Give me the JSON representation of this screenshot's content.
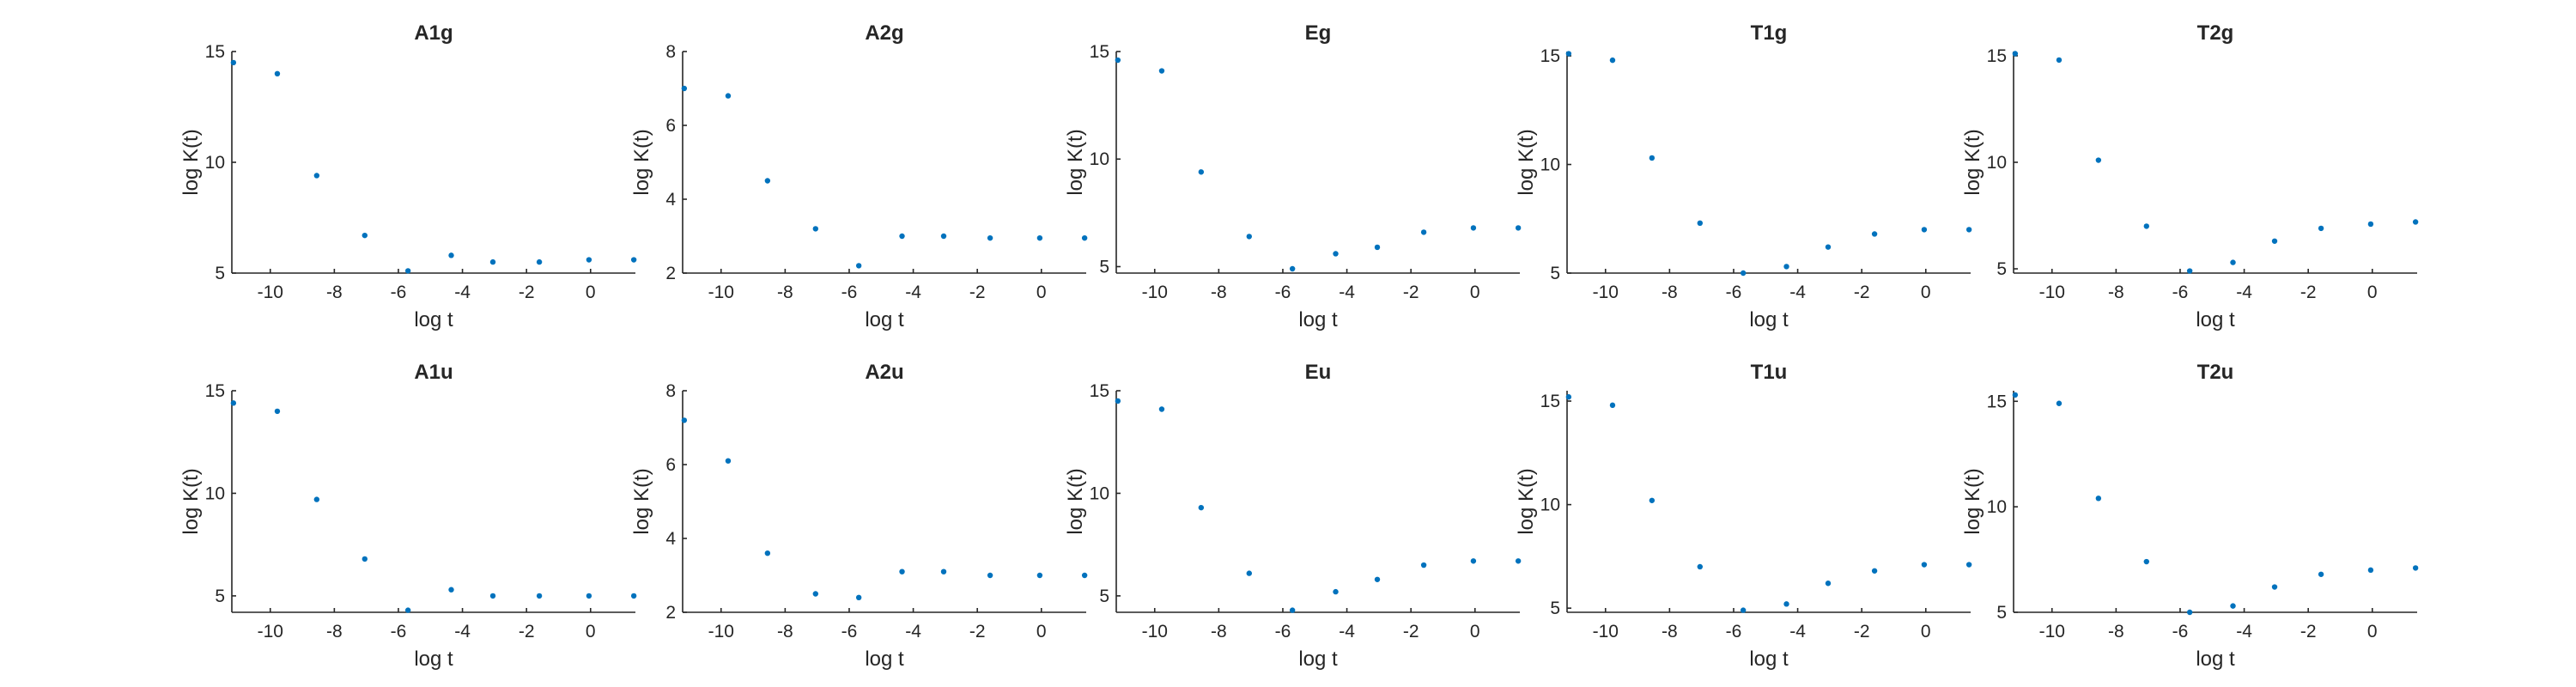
{
  "chart_data": [
    {
      "type": "scatter",
      "title": "A1g",
      "xlabel": "log t",
      "ylabel": "log K(t)",
      "xlim": [
        -11.2,
        1.4
      ],
      "ylim": [
        5,
        15
      ],
      "xticks": [
        -10,
        -8,
        -6,
        -4,
        -2,
        0
      ],
      "yticks": [
        5,
        10,
        15
      ],
      "series": [
        {
          "x": [
            -11.15,
            -9.78,
            -8.55,
            -7.05,
            -5.7,
            -4.35,
            -3.05,
            -1.6,
            -0.05,
            1.35
          ],
          "y": [
            14.5,
            14.0,
            9.4,
            6.7,
            5.1,
            5.8,
            5.5,
            5.5,
            5.6,
            5.6
          ]
        }
      ]
    },
    {
      "type": "scatter",
      "title": "A2g",
      "xlabel": "log t",
      "ylabel": "log K(t)",
      "xlim": [
        -11.2,
        1.4
      ],
      "ylim": [
        2,
        8
      ],
      "xticks": [
        -10,
        -8,
        -6,
        -4,
        -2,
        0
      ],
      "yticks": [
        2,
        4,
        6,
        8
      ],
      "series": [
        {
          "x": [
            -11.15,
            -9.78,
            -8.55,
            -7.05,
            -5.7,
            -4.35,
            -3.05,
            -1.6,
            -0.05,
            1.35
          ],
          "y": [
            7.0,
            6.8,
            4.5,
            3.2,
            2.2,
            3.0,
            3.0,
            2.95,
            2.95,
            2.95
          ]
        }
      ]
    },
    {
      "type": "scatter",
      "title": "Eg",
      "xlabel": "log t",
      "ylabel": "log K(t)",
      "xlim": [
        -11.2,
        1.4
      ],
      "ylim": [
        4.7,
        15
      ],
      "xticks": [
        -10,
        -8,
        -6,
        -4,
        -2,
        0
      ],
      "yticks": [
        5,
        10,
        15
      ],
      "series": [
        {
          "x": [
            -11.15,
            -9.78,
            -8.55,
            -7.05,
            -5.7,
            -4.35,
            -3.05,
            -1.6,
            -0.05,
            1.35
          ],
          "y": [
            14.6,
            14.1,
            9.4,
            6.4,
            4.9,
            5.6,
            5.9,
            6.6,
            6.8,
            6.8
          ]
        }
      ]
    },
    {
      "type": "scatter",
      "title": "T1g",
      "xlabel": "log t",
      "ylabel": "log K(t)",
      "xlim": [
        -11.2,
        1.4
      ],
      "ylim": [
        5,
        15.2
      ],
      "xticks": [
        -10,
        -8,
        -6,
        -4,
        -2,
        0
      ],
      "yticks": [
        5,
        10,
        15
      ],
      "series": [
        {
          "x": [
            -11.15,
            -9.78,
            -8.55,
            -7.05,
            -5.7,
            -4.35,
            -3.05,
            -1.6,
            -0.05,
            1.35
          ],
          "y": [
            15.1,
            14.8,
            10.3,
            7.3,
            5.0,
            5.3,
            6.2,
            6.8,
            7.0,
            7.0
          ]
        }
      ]
    },
    {
      "type": "scatter",
      "title": "T2g",
      "xlabel": "log t",
      "ylabel": "log K(t)",
      "xlim": [
        -11.2,
        1.4
      ],
      "ylim": [
        4.8,
        15.2
      ],
      "xticks": [
        -10,
        -8,
        -6,
        -4,
        -2,
        0
      ],
      "yticks": [
        5,
        10,
        15
      ],
      "series": [
        {
          "x": [
            -11.15,
            -9.78,
            -8.55,
            -7.05,
            -5.7,
            -4.35,
            -3.05,
            -1.6,
            -0.05,
            1.35
          ],
          "y": [
            15.1,
            14.8,
            10.1,
            7.0,
            4.9,
            5.3,
            6.3,
            6.9,
            7.1,
            7.2
          ]
        }
      ]
    },
    {
      "type": "scatter",
      "title": "A1u",
      "xlabel": "log t",
      "ylabel": "log K(t)",
      "xlim": [
        -11.2,
        1.4
      ],
      "ylim": [
        4.2,
        15
      ],
      "xticks": [
        -10,
        -8,
        -6,
        -4,
        -2,
        0
      ],
      "yticks": [
        5,
        10,
        15
      ],
      "series": [
        {
          "x": [
            -11.15,
            -9.78,
            -8.55,
            -7.05,
            -5.7,
            -4.35,
            -3.05,
            -1.6,
            -0.05,
            1.35
          ],
          "y": [
            14.4,
            14.0,
            9.7,
            6.8,
            4.3,
            5.3,
            5.0,
            5.0,
            5.0,
            5.0
          ]
        }
      ]
    },
    {
      "type": "scatter",
      "title": "A2u",
      "xlabel": "log t",
      "ylabel": "log K(t)",
      "xlim": [
        -11.2,
        1.4
      ],
      "ylim": [
        2,
        8
      ],
      "xticks": [
        -10,
        -8,
        -6,
        -4,
        -2,
        0
      ],
      "yticks": [
        2,
        4,
        6,
        8
      ],
      "series": [
        {
          "x": [
            -11.15,
            -9.78,
            -8.55,
            -7.05,
            -5.7,
            -4.35,
            -3.05,
            -1.6,
            -0.05,
            1.35
          ],
          "y": [
            7.2,
            6.1,
            3.6,
            2.5,
            2.4,
            3.1,
            3.1,
            3.0,
            3.0,
            3.0
          ]
        }
      ]
    },
    {
      "type": "scatter",
      "title": "Eu",
      "xlabel": "log t",
      "ylabel": "log K(t)",
      "xlim": [
        -11.2,
        1.4
      ],
      "ylim": [
        4.2,
        15
      ],
      "xticks": [
        -10,
        -8,
        -6,
        -4,
        -2,
        0
      ],
      "yticks": [
        5,
        10,
        15
      ],
      "series": [
        {
          "x": [
            -11.15,
            -9.78,
            -8.55,
            -7.05,
            -5.7,
            -4.35,
            -3.05,
            -1.6,
            -0.05,
            1.35
          ],
          "y": [
            14.5,
            14.1,
            9.3,
            6.1,
            4.3,
            5.2,
            5.8,
            6.5,
            6.7,
            6.7
          ]
        }
      ]
    },
    {
      "type": "scatter",
      "title": "T1u",
      "xlabel": "log t",
      "ylabel": "log K(t)",
      "xlim": [
        -11.2,
        1.4
      ],
      "ylim": [
        4.8,
        15.5
      ],
      "xticks": [
        -10,
        -8,
        -6,
        -4,
        -2,
        0
      ],
      "yticks": [
        5,
        10,
        15
      ],
      "series": [
        {
          "x": [
            -11.15,
            -9.78,
            -8.55,
            -7.05,
            -5.7,
            -4.35,
            -3.05,
            -1.6,
            -0.05,
            1.35
          ],
          "y": [
            15.2,
            14.8,
            10.2,
            7.0,
            4.9,
            5.2,
            6.2,
            6.8,
            7.1,
            7.1
          ]
        }
      ]
    },
    {
      "type": "scatter",
      "title": "T2u",
      "xlabel": "log t",
      "ylabel": "log K(t)",
      "xlim": [
        -11.2,
        1.4
      ],
      "ylim": [
        5,
        15.5
      ],
      "xticks": [
        -10,
        -8,
        -6,
        -4,
        -2,
        0
      ],
      "yticks": [
        5,
        10,
        15
      ],
      "series": [
        {
          "x": [
            -11.15,
            -9.78,
            -8.55,
            -7.05,
            -5.7,
            -4.35,
            -3.05,
            -1.6,
            -0.05,
            1.35
          ],
          "y": [
            15.3,
            14.9,
            10.4,
            7.4,
            5.0,
            5.3,
            6.2,
            6.8,
            7.0,
            7.1
          ]
        }
      ]
    }
  ],
  "colors": {
    "marker": "#0072BD",
    "axis": "#262626",
    "background": "#ffffff"
  }
}
